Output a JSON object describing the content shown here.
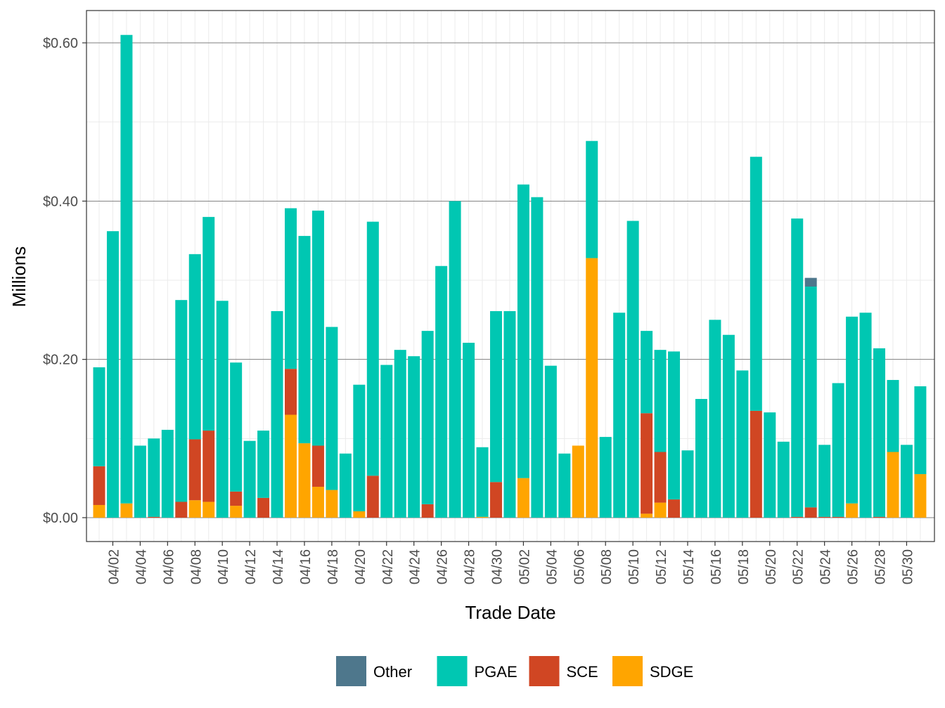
{
  "chart_data": {
    "type": "bar",
    "stacked": true,
    "xlabel": "Trade Date",
    "ylabel": "Millions",
    "ylim": [
      -0.03,
      0.64
    ],
    "y_ticks": [
      0.0,
      0.2,
      0.4,
      0.6
    ],
    "y_tick_labels": [
      "$0.00",
      "$0.20",
      "$0.40",
      "$0.60"
    ],
    "x_tick_labels": [
      "04/02",
      "04/04",
      "04/06",
      "04/08",
      "04/10",
      "04/12",
      "04/14",
      "04/16",
      "04/18",
      "04/20",
      "04/22",
      "04/24",
      "04/26",
      "04/28",
      "04/30",
      "05/02",
      "05/04",
      "05/06",
      "05/08",
      "05/10",
      "05/12",
      "05/14",
      "05/16",
      "05/18",
      "05/20",
      "05/22",
      "05/24",
      "05/26",
      "05/28",
      "05/30"
    ],
    "x_tick_day_index": [
      1,
      3,
      5,
      7,
      9,
      11,
      13,
      15,
      17,
      19,
      21,
      23,
      25,
      27,
      29,
      31,
      33,
      35,
      37,
      39,
      41,
      43,
      45,
      47,
      49,
      51,
      53,
      55,
      57,
      59
    ],
    "categories": [
      "04/01",
      "04/02",
      "04/03",
      "04/04",
      "04/05",
      "04/06",
      "04/07",
      "04/08",
      "04/09",
      "04/10",
      "04/11",
      "04/12",
      "04/13",
      "04/14",
      "04/15",
      "04/16",
      "04/17",
      "04/18",
      "04/19",
      "04/20",
      "04/21",
      "04/22",
      "04/23",
      "04/24",
      "04/25",
      "04/26",
      "04/27",
      "04/28",
      "04/29",
      "04/30",
      "05/01",
      "05/02",
      "05/03",
      "05/04",
      "05/05",
      "05/06",
      "05/07",
      "05/08",
      "05/09",
      "05/10",
      "05/11",
      "05/12",
      "05/13",
      "05/14",
      "05/15",
      "05/16",
      "05/17",
      "05/18",
      "05/19",
      "05/20",
      "05/21",
      "05/22",
      "05/23",
      "05/24",
      "05/25",
      "05/26",
      "05/27",
      "05/28",
      "05/29",
      "05/30",
      "05/31"
    ],
    "series": [
      {
        "name": "SDGE",
        "color": "#ffa500",
        "values": [
          0.016,
          0,
          0.018,
          0,
          0,
          0,
          0,
          0.022,
          0.02,
          0,
          0.015,
          0,
          0,
          0,
          0.13,
          0.094,
          0.039,
          0.035,
          0,
          0.008,
          0,
          0,
          0,
          0,
          0,
          0,
          0,
          0,
          0.001,
          0,
          0,
          0.05,
          0,
          0,
          0,
          0.091,
          0.328,
          0,
          0,
          0,
          0.005,
          0.019,
          0,
          0,
          0,
          0,
          0,
          0,
          0,
          0,
          0,
          0,
          0,
          0,
          0,
          0.018,
          0,
          0,
          0.083,
          0,
          0.055
        ]
      },
      {
        "name": "SCE",
        "color": "#d04623",
        "values": [
          0.049,
          0,
          0,
          0,
          0.001,
          0,
          0.02,
          0.077,
          0.09,
          0,
          0.018,
          0,
          0.025,
          0,
          0.058,
          0,
          0.052,
          0,
          0,
          0,
          0.053,
          0,
          0,
          0,
          0.017,
          0,
          0,
          0,
          0,
          0.045,
          0,
          0,
          0,
          0,
          0,
          0,
          0,
          0,
          0,
          0,
          0.127,
          0.064,
          0.023,
          0,
          0,
          0,
          0,
          0,
          0.135,
          0,
          0,
          0.001,
          0.013,
          0.001,
          0.001,
          0,
          0,
          0.001,
          0,
          0,
          0
        ]
      },
      {
        "name": "PGAE",
        "color": "#00c7b2",
        "values": [
          0.125,
          0.362,
          0.592,
          0.091,
          0.099,
          0.111,
          0.255,
          0.234,
          0.27,
          0.274,
          0.163,
          0.097,
          0.085,
          0.261,
          0.203,
          0.262,
          0.297,
          0.206,
          0.081,
          0.16,
          0.321,
          0.193,
          0.212,
          0.204,
          0.219,
          0.318,
          0.4,
          0.221,
          0.088,
          0.216,
          0.261,
          0.371,
          0.405,
          0.192,
          0.081,
          0,
          0.148,
          0.102,
          0.259,
          0.375,
          0.104,
          0.129,
          0.187,
          0.085,
          0.15,
          0.25,
          0.231,
          0.186,
          0.321,
          0.133,
          0.096,
          0.377,
          0.279,
          0.091,
          0.169,
          0.236,
          0.259,
          0.213,
          0.091,
          0.092,
          0.111
        ]
      },
      {
        "name": "Other",
        "color": "#4e778c",
        "values": [
          0,
          0,
          0,
          0,
          0,
          0,
          0,
          0,
          0,
          0,
          0,
          0,
          0,
          0,
          0,
          0,
          0,
          0,
          0,
          0,
          0,
          0,
          0,
          0,
          0,
          0,
          0,
          0,
          0,
          0,
          0,
          0,
          0,
          0,
          0,
          0,
          0,
          0,
          0,
          0,
          0,
          0,
          0,
          0,
          0,
          0,
          0,
          0,
          0,
          0,
          0,
          0,
          0.011,
          0,
          0,
          0,
          0,
          0,
          0,
          0,
          0
        ]
      }
    ],
    "legend": {
      "position": "bottom",
      "entries": [
        {
          "name": "Other",
          "color": "#4e778c"
        },
        {
          "name": "PGAE",
          "color": "#00c7b2"
        },
        {
          "name": "SCE",
          "color": "#d04623"
        },
        {
          "name": "SDGE",
          "color": "#ffa500"
        }
      ]
    },
    "grid": true
  }
}
